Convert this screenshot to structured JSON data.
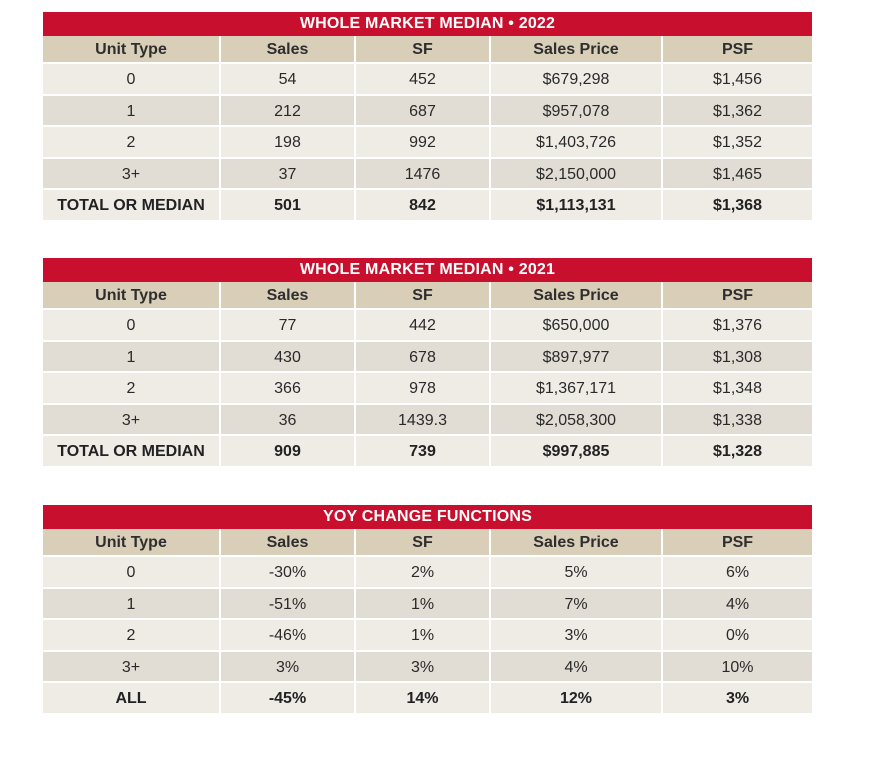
{
  "tables": [
    {
      "title": "WHOLE MARKET MEDIAN • 2022",
      "headers": [
        "Unit Type",
        "Sales",
        "SF",
        "Sales Price",
        "PSF"
      ],
      "rows": [
        [
          "0",
          "54",
          "452",
          "$679,298",
          "$1,456"
        ],
        [
          "1",
          "212",
          "687",
          "$957,078",
          "$1,362"
        ],
        [
          "2",
          "198",
          "992",
          "$1,403,726",
          "$1,352"
        ],
        [
          "3+",
          "37",
          "1476",
          "$2,150,000",
          "$1,465"
        ]
      ],
      "total": [
        "TOTAL OR MEDIAN",
        "501",
        "842",
        "$1,113,131",
        "$1,368"
      ]
    },
    {
      "title": "WHOLE MARKET MEDIAN • 2021",
      "headers": [
        "Unit Type",
        "Sales",
        "SF",
        "Sales Price",
        "PSF"
      ],
      "rows": [
        [
          "0",
          "77",
          "442",
          "$650,000",
          "$1,376"
        ],
        [
          "1",
          "430",
          "678",
          "$897,977",
          "$1,308"
        ],
        [
          "2",
          "366",
          "978",
          "$1,367,171",
          "$1,348"
        ],
        [
          "3+",
          "36",
          "1439.3",
          "$2,058,300",
          "$1,338"
        ]
      ],
      "total": [
        "TOTAL OR MEDIAN",
        "909",
        "739",
        "$997,885",
        "$1,328"
      ]
    },
    {
      "title": "YOY CHANGE FUNCTIONS",
      "headers": [
        "Unit Type",
        "Sales",
        "SF",
        "Sales Price",
        "PSF"
      ],
      "rows": [
        [
          "0",
          "-30%",
          "2%",
          "5%",
          "6%"
        ],
        [
          "1",
          "-51%",
          "1%",
          "7%",
          "4%"
        ],
        [
          "2",
          "-46%",
          "1%",
          "3%",
          "0%"
        ],
        [
          "3+",
          "3%",
          "3%",
          "4%",
          "10%"
        ]
      ],
      "total": [
        "ALL",
        "-45%",
        "14%",
        "12%",
        "3%"
      ]
    }
  ],
  "colors": {
    "banner": "#c8102e",
    "header_row": "#d9cfb8",
    "row_light": "#efece6",
    "row_dark": "#e1dcd4"
  }
}
